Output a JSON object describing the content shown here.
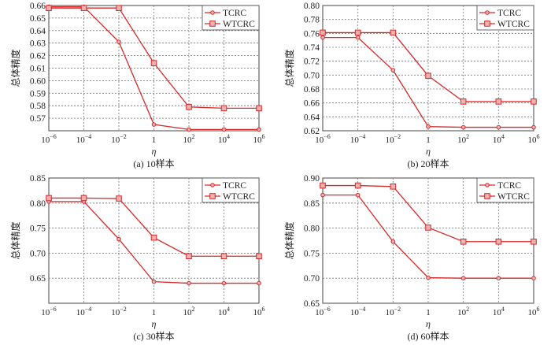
{
  "colors": {
    "line": "#d42a2a",
    "marker_fill": "#f2b0b0",
    "grid": "#777777",
    "axis": "#444444"
  },
  "chart_data": [
    {
      "type": "line",
      "title": "(a) 10样本",
      "xlabel": "η",
      "ylabel": "总体精度",
      "categories": [
        "10^-6",
        "10^-4",
        "10^-2",
        "1",
        "10^2",
        "10^4",
        "10^6"
      ],
      "ylim": [
        0.56,
        0.66
      ],
      "yticks": [
        0.57,
        0.58,
        0.59,
        0.6,
        0.61,
        0.62,
        0.63,
        0.64,
        0.65,
        0.66
      ],
      "grid": true,
      "legend_position": "top-right",
      "series": [
        {
          "name": "TCRC",
          "marker": "circle",
          "values": [
            0.659,
            0.659,
            0.631,
            0.565,
            0.561,
            0.561,
            0.561
          ]
        },
        {
          "name": "WTCRC",
          "marker": "square",
          "values": [
            0.658,
            0.658,
            0.658,
            0.614,
            0.579,
            0.578,
            0.578
          ]
        }
      ]
    },
    {
      "type": "line",
      "title": "(b) 20样本",
      "xlabel": "η",
      "ylabel": "总体精度",
      "categories": [
        "10^-6",
        "10^-4",
        "10^-2",
        "1",
        "10^2",
        "10^4",
        "10^6"
      ],
      "ylim": [
        0.62,
        0.8
      ],
      "yticks": [
        0.62,
        0.64,
        0.66,
        0.68,
        0.7,
        0.72,
        0.74,
        0.76,
        0.78,
        0.8
      ],
      "grid": true,
      "legend_position": "top-right",
      "series": [
        {
          "name": "TCRC",
          "marker": "circle",
          "values": [
            0.754,
            0.754,
            0.707,
            0.626,
            0.625,
            0.625,
            0.625
          ]
        },
        {
          "name": "WTCRC",
          "marker": "square",
          "values": [
            0.761,
            0.761,
            0.761,
            0.699,
            0.662,
            0.662,
            0.662
          ]
        }
      ]
    },
    {
      "type": "line",
      "title": "(c) 30样本",
      "xlabel": "η",
      "ylabel": "总体精度",
      "categories": [
        "10^-6",
        "10^-4",
        "10^-2",
        "1",
        "10^2",
        "10^4",
        "10^6"
      ],
      "ylim": [
        0.6,
        0.85
      ],
      "yticks": [
        0.65,
        0.7,
        0.75,
        0.8,
        0.85
      ],
      "grid": true,
      "legend_position": "top-right",
      "series": [
        {
          "name": "TCRC",
          "marker": "circle",
          "values": [
            0.803,
            0.803,
            0.728,
            0.643,
            0.64,
            0.64,
            0.64
          ]
        },
        {
          "name": "WTCRC",
          "marker": "square",
          "values": [
            0.81,
            0.81,
            0.809,
            0.731,
            0.694,
            0.694,
            0.694
          ]
        }
      ]
    },
    {
      "type": "line",
      "title": "(d) 60样本",
      "xlabel": "η",
      "ylabel": "总体精度",
      "categories": [
        "10^-6",
        "10^-4",
        "10^-2",
        "1",
        "10^2",
        "10^4",
        "10^6"
      ],
      "ylim": [
        0.65,
        0.9
      ],
      "yticks": [
        0.65,
        0.7,
        0.75,
        0.8,
        0.85,
        0.9
      ],
      "grid": true,
      "legend_position": "top-right",
      "series": [
        {
          "name": "TCRC",
          "marker": "circle",
          "values": [
            0.866,
            0.866,
            0.773,
            0.701,
            0.7,
            0.7,
            0.7
          ]
        },
        {
          "name": "WTCRC",
          "marker": "square",
          "values": [
            0.885,
            0.885,
            0.883,
            0.801,
            0.773,
            0.773,
            0.773
          ]
        }
      ]
    }
  ]
}
